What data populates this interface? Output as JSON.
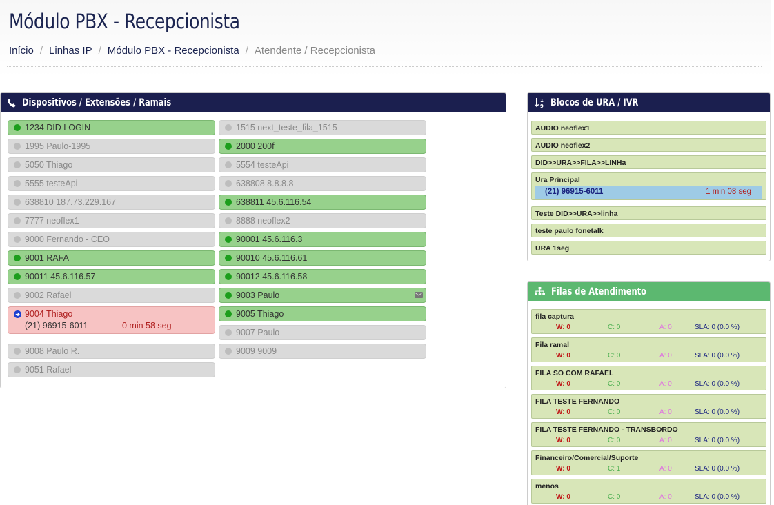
{
  "header": {
    "title": "Módulo PBX - Recepcionista",
    "breadcrumb": [
      "Início",
      "Linhas IP",
      "Módulo PBX - Recepcionista",
      "Atendente / Recepcionista"
    ]
  },
  "colors": {
    "navy": "#1b1f4f",
    "green_header": "#5cb870",
    "online": "#97d18c",
    "offline": "#dadada",
    "in_call": "#f7c3c3"
  },
  "devices": {
    "title": "Dispositivos / Extensões / Ramais",
    "icon": "phone-icon",
    "col1": [
      {
        "label": "1234 DID LOGIN",
        "status": "on"
      },
      {
        "label": "1995 Paulo-1995",
        "status": "off"
      },
      {
        "label": "5050 Thiago",
        "status": "off"
      },
      {
        "label": "5555 testeApi",
        "status": "off"
      },
      {
        "label": "638810 187.73.229.167",
        "status": "off"
      },
      {
        "label": "7777 neoflex1",
        "status": "off"
      },
      {
        "label": "9000 Fernando - CEO",
        "status": "off"
      },
      {
        "label": "9001 RAFA",
        "status": "on"
      },
      {
        "label": "90011 45.6.116.57",
        "status": "on"
      },
      {
        "label": "9002 Rafael",
        "status": "off"
      },
      {
        "label": "9004 Thiago",
        "status": "call",
        "number": "(21) 96915-6011",
        "time": "0 min 58 seg"
      },
      {
        "label": "9008 Paulo R.",
        "status": "off"
      },
      {
        "label": "9051 Rafael",
        "status": "off"
      }
    ],
    "col2": [
      {
        "label": "1515 next_teste_fila_1515",
        "status": "off"
      },
      {
        "label": "2000 200f",
        "status": "on"
      },
      {
        "label": "5554 testeApi",
        "status": "off"
      },
      {
        "label": "638808 8.8.8.8",
        "status": "off"
      },
      {
        "label": "638811 45.6.116.54",
        "status": "on"
      },
      {
        "label": "8888 neoflex2",
        "status": "off"
      },
      {
        "label": "90001 45.6.116.3",
        "status": "on"
      },
      {
        "label": "90010 45.6.116.61",
        "status": "on"
      },
      {
        "label": "90012 45.6.116.58",
        "status": "on"
      },
      {
        "label": "9003 Paulo",
        "status": "on",
        "icon": "envelope-icon"
      },
      {
        "label": "9005 Thiago",
        "status": "on"
      },
      {
        "label": "9007 Paulo",
        "status": "off"
      },
      {
        "label": "9009 9009",
        "status": "off"
      }
    ]
  },
  "ura": {
    "title": "Blocos de URA / IVR",
    "icon": "sort-numeric-icon",
    "items": [
      {
        "name": "AUDIO neoflex1"
      },
      {
        "name": "AUDIO neoflex2"
      },
      {
        "name": "DID>>URA>>FILA>>LINHa"
      },
      {
        "name": "Ura Principal",
        "call": {
          "number": "(21) 96915-6011",
          "time": "1 min 08 seg"
        }
      },
      {
        "name": "Teste DID>>URA>>linha"
      },
      {
        "name": "teste paulo fonetalk"
      },
      {
        "name": "URA 1seg"
      }
    ]
  },
  "filas": {
    "title": "Filas de Atendimento",
    "icon": "sitemap-icon",
    "items": [
      {
        "name": "fila captura",
        "w": "W: 0",
        "c": "C: 0",
        "a": "A: 0",
        "sla": "SLA: 0 (0.0 %)"
      },
      {
        "name": "Fila ramal",
        "w": "W: 0",
        "c": "C: 0",
        "a": "A: 0",
        "sla": "SLA: 0 (0.0 %)"
      },
      {
        "name": "FILA SO COM RAFAEL",
        "w": "W: 0",
        "c": "C: 0",
        "a": "A: 0",
        "sla": "SLA: 0 (0.0 %)"
      },
      {
        "name": "FILA TESTE FERNANDO",
        "w": "W: 0",
        "c": "C: 0",
        "a": "A: 0",
        "sla": "SLA: 0 (0.0 %)"
      },
      {
        "name": "FILA TESTE FERNANDO - TRANSBORDO",
        "w": "W: 0",
        "c": "C: 0",
        "a": "A: 0",
        "sla": "SLA: 0 (0.0 %)"
      },
      {
        "name": "Financeiro/Comercial/Suporte",
        "w": "W: 0",
        "c": "C: 1",
        "a": "A: 0",
        "sla": "SLA: 0 (0.0 %)"
      },
      {
        "name": "menos",
        "w": "W: 0",
        "c": "C: 0",
        "a": "A: 0",
        "sla": "SLA: 0 (0.0 %)"
      }
    ]
  }
}
